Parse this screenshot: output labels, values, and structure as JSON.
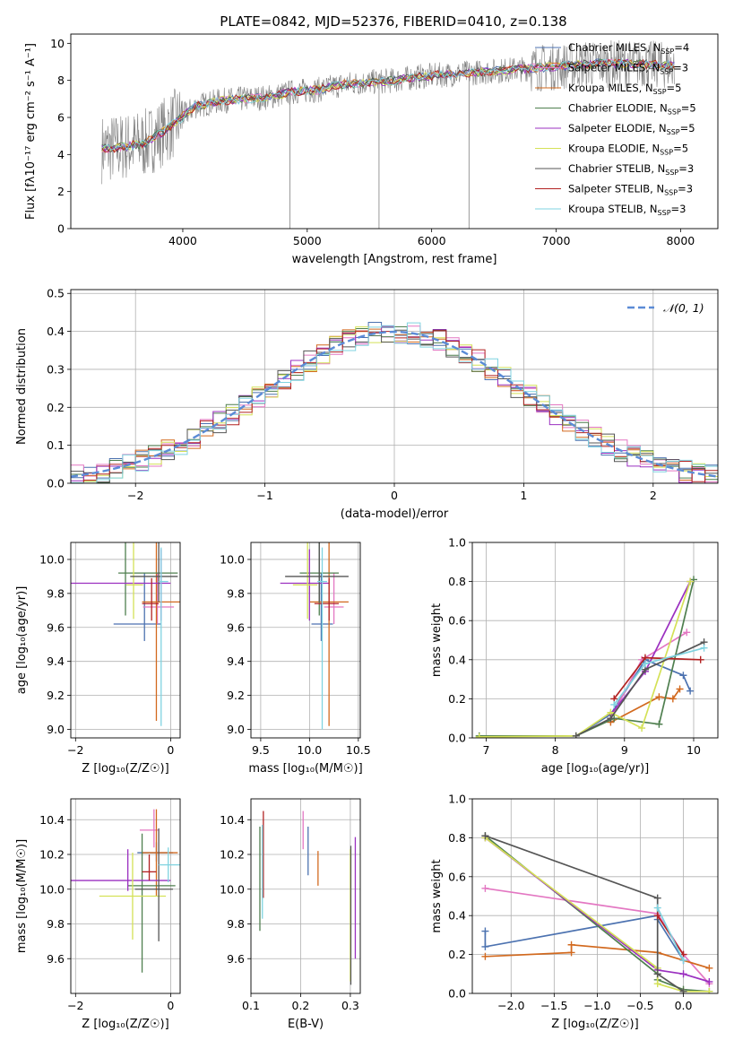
{
  "title": "PLATE=0842, MJD=52376, FIBERID=0410, z=0.138",
  "colors": {
    "grid": "#b0b0b0",
    "series": [
      "#4c72b0",
      "#e377c2",
      "#d2691e",
      "#4f7f4f",
      "#9b30c0",
      "#d4e157",
      "#555555",
      "#b22222",
      "#7fd3e0"
    ],
    "gaussian": "#5b8bd6"
  },
  "chart_data": [
    {
      "id": "spectrum",
      "type": "line",
      "xlabel": "wavelength [Angstrom, rest frame]",
      "ylabel": "Flux [fλ10⁻¹⁷ erg cm⁻² s⁻¹ A⁻¹]",
      "xlim": [
        3100,
        8300
      ],
      "ylim": [
        0,
        10.5
      ],
      "xticks": [
        "4000",
        "5000",
        "6000",
        "7000",
        "8000"
      ],
      "yticks": [
        "0",
        "2",
        "4",
        "6",
        "8",
        "10"
      ],
      "legend_position": "top-right",
      "legend": [
        "Chabrier MILES, N_SSP=4",
        "Salpeter MILES, N_SSP=3",
        "Kroupa MILES, N_SSP=5",
        "Chabrier ELODIE, N_SSP=5",
        "Salpeter ELODIE, N_SSP=5",
        "Kroupa ELODIE, N_SSP=5",
        "Chabrier STELIB, N_SSP=3",
        "Salpeter STELIB, N_SSP=3",
        "Kroupa STELIB, N_SSP=3"
      ],
      "data_x": [
        3350,
        3500,
        3700,
        3900,
        4100,
        4300,
        4500,
        4700,
        4900,
        5100,
        5300,
        5500,
        5700,
        5900,
        6100,
        6300,
        6500,
        6700,
        6900,
        7100,
        7300,
        7500,
        7700,
        7900
      ],
      "data_y": [
        4.3,
        4.4,
        4.6,
        5.5,
        6.6,
        6.9,
        7.0,
        7.1,
        7.4,
        7.5,
        7.8,
        7.9,
        8.0,
        8.2,
        8.3,
        8.4,
        8.5,
        8.6,
        8.7,
        8.8,
        8.9,
        8.9,
        8.9,
        8.8
      ],
      "grid": false
    },
    {
      "id": "residuals",
      "type": "histogram",
      "xlabel": "(data-model)/error",
      "ylabel": "Normed distribution",
      "xlim": [
        -2.5,
        2.5
      ],
      "ylim": [
        0,
        0.51
      ],
      "xticks": [
        "−2",
        "−1",
        "0",
        "1",
        "2"
      ],
      "yticks": [
        "0.0",
        "0.1",
        "0.2",
        "0.3",
        "0.4",
        "0.5"
      ],
      "legend": [
        "𝒩(0, 1)"
      ],
      "legend_position": "top-right",
      "bin_width": 0.1,
      "grid": true
    },
    {
      "id": "age-vs-Z",
      "type": "errorbar",
      "xlabel": "Z [log₁₀(Z/Z☉)]",
      "ylabel": "age  [log₁₀(age/yr)]",
      "xlim": [
        -2.1,
        0.2
      ],
      "ylim": [
        8.95,
        10.1
      ],
      "xticks": [
        "−2",
        "0"
      ],
      "yticks": [
        "9.0",
        "9.2",
        "9.4",
        "9.6",
        "9.8",
        "10.0"
      ],
      "points": [
        {
          "x": -0.55,
          "y": 9.62,
          "xl": 0.65,
          "xr": 0.35,
          "yl": 0.1,
          "yr": 0.3
        },
        {
          "x": -0.28,
          "y": 9.72,
          "xl": 0.3,
          "xr": 0.35,
          "yl": 0.1,
          "yr": 0.2
        },
        {
          "x": -0.3,
          "y": 9.75,
          "xl": 0.3,
          "xr": 0.5,
          "yl": 0.7,
          "yr": 0.35
        },
        {
          "x": -0.95,
          "y": 9.92,
          "xl": 0.15,
          "xr": 1.1,
          "yl": 0.25,
          "yr": 0.18
        },
        {
          "x": -0.2,
          "y": 9.86,
          "xl": 1.9,
          "xr": 0.2,
          "yl": 0.22,
          "yr": 0.2
        },
        {
          "x": -0.78,
          "y": 9.85,
          "xl": 0.15,
          "xr": 0.2,
          "yl": 0.2,
          "yr": 0.25
        },
        {
          "x": -0.25,
          "y": 9.9,
          "xl": 0.6,
          "xr": 0.4,
          "yl": 0.15,
          "yr": 0.2
        },
        {
          "x": -0.4,
          "y": 9.74,
          "xl": 0.2,
          "xr": 0.15,
          "yl": 0.1,
          "yr": 0.15
        },
        {
          "x": -0.2,
          "y": 9.87,
          "xl": 0.05,
          "xr": 0.15,
          "yl": 0.85,
          "yr": 0.2
        }
      ]
    },
    {
      "id": "age-vs-mass",
      "type": "errorbar",
      "xlabel": "mass [log₁₀(M/M☉)]",
      "ylabel": "",
      "xlim": [
        9.4,
        10.52
      ],
      "ylim": [
        8.95,
        10.1
      ],
      "xticks": [
        "9.5",
        "10.0",
        "10.5"
      ],
      "yticks": [
        "9.0",
        "9.2",
        "9.4",
        "9.6",
        "9.8",
        "10.0"
      ],
      "points": [
        {
          "x": 10.12,
          "y": 9.62,
          "xl": 0.1,
          "xr": 0.12,
          "yl": 0.1,
          "yr": 0.3
        },
        {
          "x": 10.25,
          "y": 9.72,
          "xl": 0.1,
          "xr": 0.1,
          "yl": 0.1,
          "yr": 0.2
        },
        {
          "x": 10.2,
          "y": 9.75,
          "xl": 0.2,
          "xr": 0.2,
          "yl": 0.73,
          "yr": 0.35
        },
        {
          "x": 10.1,
          "y": 9.92,
          "xl": 0.2,
          "xr": 0.2,
          "yl": 0.25,
          "yr": 0.18
        },
        {
          "x": 10.0,
          "y": 9.86,
          "xl": 0.3,
          "xr": 0.2,
          "yl": 0.22,
          "yr": 0.2
        },
        {
          "x": 9.98,
          "y": 9.85,
          "xl": 0.15,
          "xr": 0.1,
          "yl": 0.2,
          "yr": 0.25
        },
        {
          "x": 10.1,
          "y": 9.9,
          "xl": 0.35,
          "xr": 0.3,
          "yl": 0.15,
          "yr": 0.2
        },
        {
          "x": 10.2,
          "y": 9.74,
          "xl": 0.15,
          "xr": 0.1,
          "yl": 0.1,
          "yr": 0.15
        },
        {
          "x": 10.13,
          "y": 9.87,
          "xl": 0.05,
          "xr": 0.05,
          "yl": 0.87,
          "yr": 0.2
        }
      ]
    },
    {
      "id": "weight-vs-age",
      "type": "line",
      "xlabel": "age  [log₁₀(age/yr)]",
      "ylabel": "mass weight",
      "xlim": [
        6.8,
        10.35
      ],
      "ylim": [
        0,
        1.0
      ],
      "xticks": [
        "7",
        "8",
        "9",
        "10"
      ],
      "yticks": [
        "0.0",
        "0.2",
        "0.4",
        "0.6",
        "0.8",
        "1.0"
      ],
      "series": [
        {
          "x": [
            8.3,
            8.8,
            9.3,
            9.85,
            9.95
          ],
          "y": [
            0.01,
            0.12,
            0.4,
            0.32,
            0.24
          ]
        },
        {
          "x": [
            8.8,
            9.25,
            9.9
          ],
          "y": [
            0.1,
            0.4,
            0.54
          ]
        },
        {
          "x": [
            8.8,
            9.5,
            9.7,
            9.8
          ],
          "y": [
            0.08,
            0.21,
            0.2,
            0.25
          ]
        },
        {
          "x": [
            6.9,
            8.3,
            8.85,
            9.5,
            10.0
          ],
          "y": [
            0.01,
            0.01,
            0.1,
            0.07,
            0.81
          ]
        },
        {
          "x": [
            8.8,
            9.3,
            9.95
          ],
          "y": [
            0.12,
            0.34,
            0.8
          ]
        },
        {
          "x": [
            6.9,
            8.3,
            8.8,
            9.25,
            9.95
          ],
          "y": [
            0.005,
            0.01,
            0.13,
            0.05,
            0.8
          ]
        },
        {
          "x": [
            8.3,
            8.8,
            9.3,
            10.15
          ],
          "y": [
            0.01,
            0.1,
            0.35,
            0.49
          ]
        },
        {
          "x": [
            8.85,
            9.3,
            10.1
          ],
          "y": [
            0.2,
            0.41,
            0.4
          ]
        },
        {
          "x": [
            8.85,
            9.3,
            10.15
          ],
          "y": [
            0.17,
            0.38,
            0.46
          ]
        }
      ]
    },
    {
      "id": "mass-vs-Z",
      "type": "errorbar",
      "xlabel": "Z [log₁₀(Z/Z☉)]",
      "ylabel": "mass [log₁₀(M/M☉)]",
      "xlim": [
        -2.1,
        0.2
      ],
      "ylim": [
        9.4,
        10.52
      ],
      "xticks": [
        "−2",
        "0"
      ],
      "yticks": [
        "9.6",
        "9.8",
        "10.0",
        "10.2",
        "10.4"
      ],
      "points": [
        {
          "x": -0.3,
          "y": 10.21,
          "xl": 0.4,
          "xr": 0.35,
          "yl": 0.05,
          "yr": 0.06
        },
        {
          "x": -0.35,
          "y": 10.34,
          "xl": 0.3,
          "xr": 0.1,
          "yl": 0.1,
          "yr": 0.12
        },
        {
          "x": -0.3,
          "y": 10.21,
          "xl": 0.3,
          "xr": 0.45,
          "yl": 0.25,
          "yr": 0.25
        },
        {
          "x": -0.6,
          "y": 10.02,
          "xl": 0.3,
          "xr": 0.7,
          "yl": 0.5,
          "yr": 0.3
        },
        {
          "x": -0.9,
          "y": 10.05,
          "xl": 1.2,
          "xr": 0.9,
          "yl": 0.06,
          "yr": 0.18
        },
        {
          "x": -0.8,
          "y": 9.96,
          "xl": 0.7,
          "xr": 0.7,
          "yl": 0.25,
          "yr": 0.25
        },
        {
          "x": -0.25,
          "y": 10.0,
          "xl": 0.5,
          "xr": 0.3,
          "yl": 0.3,
          "yr": 0.35
        },
        {
          "x": -0.45,
          "y": 10.1,
          "xl": 0.15,
          "xr": 0.15,
          "yl": 0.05,
          "yr": 0.1
        },
        {
          "x": -0.05,
          "y": 10.14,
          "xl": 0.2,
          "xr": 0.25,
          "yl": 0.1,
          "yr": 0.1
        }
      ]
    },
    {
      "id": "mass-vs-ebv",
      "type": "errorbar",
      "xlabel": "E(B-V)",
      "ylabel": "",
      "xlim": [
        0.1,
        0.32
      ],
      "ylim": [
        9.4,
        10.52
      ],
      "xticks": [
        "0.1",
        "0.2",
        "0.3"
      ],
      "yticks": [
        "9.6",
        "9.8",
        "10.0",
        "10.2",
        "10.4"
      ],
      "points": [
        {
          "x": 0.215,
          "y": 10.22,
          "xl": 0,
          "xr": 0,
          "yl": 0.14,
          "yr": 0.14
        },
        {
          "x": 0.205,
          "y": 10.34,
          "xl": 0,
          "xr": 0,
          "yl": 0.11,
          "yr": 0.11
        },
        {
          "x": 0.235,
          "y": 10.12,
          "xl": 0,
          "xr": 0,
          "yl": 0.1,
          "yr": 0.1
        },
        {
          "x": 0.118,
          "y": 10.06,
          "xl": 0,
          "xr": 0,
          "yl": 0.3,
          "yr": 0.3
        },
        {
          "x": 0.31,
          "y": 9.95,
          "xl": 0,
          "xr": 0,
          "yl": 0.35,
          "yr": 0.35
        },
        {
          "x": 0.3,
          "y": 9.85,
          "xl": 0,
          "xr": 0,
          "yl": 0.38,
          "yr": 0.38
        },
        {
          "x": 0.301,
          "y": 9.85,
          "xl": 0,
          "xr": 0,
          "yl": 0.4,
          "yr": 0.4
        },
        {
          "x": 0.125,
          "y": 10.2,
          "xl": 0,
          "xr": 0,
          "yl": 0.25,
          "yr": 0.25
        },
        {
          "x": 0.123,
          "y": 10.1,
          "xl": 0,
          "xr": 0,
          "yl": 0.27,
          "yr": 0.27
        }
      ]
    },
    {
      "id": "weight-vs-Z",
      "type": "line",
      "xlabel": "Z [log₁₀(Z/Z☉)]",
      "ylabel": "mass weight",
      "xlim": [
        -2.45,
        0.4
      ],
      "ylim": [
        0,
        1.0
      ],
      "xticks": [
        "−2.0",
        "−1.5",
        "−1.0",
        "−0.5",
        "0.0"
      ],
      "yticks": [
        "0.0",
        "0.2",
        "0.4",
        "0.6",
        "0.8",
        "1.0"
      ],
      "series": [
        {
          "x": [
            -2.3,
            -2.3,
            -0.3,
            -0.3,
            0.0
          ],
          "y": [
            0.32,
            0.24,
            0.4,
            0.38,
            0.17
          ]
        },
        {
          "x": [
            -2.3,
            -0.3,
            0.0,
            0.3
          ],
          "y": [
            0.54,
            0.41,
            0.2,
            0.05
          ]
        },
        {
          "x": [
            -2.3,
            -1.3,
            -1.3,
            -0.3,
            0.3
          ],
          "y": [
            0.19,
            0.21,
            0.25,
            0.21,
            0.13
          ]
        },
        {
          "x": [
            -2.3,
            -0.3,
            -0.3,
            0.0,
            0.3
          ],
          "y": [
            0.81,
            0.1,
            0.07,
            0.02,
            0.01
          ]
        },
        {
          "x": [
            -2.3,
            -0.3,
            0.0,
            0.3
          ],
          "y": [
            0.8,
            0.12,
            0.1,
            0.06
          ]
        },
        {
          "x": [
            -2.3,
            -0.3,
            -0.3,
            0.0,
            0.3
          ],
          "y": [
            0.8,
            0.13,
            0.05,
            0.01,
            0.01
          ]
        },
        {
          "x": [
            -2.3,
            -0.3,
            -0.3,
            0.0
          ],
          "y": [
            0.81,
            0.49,
            0.1,
            0.01
          ]
        },
        {
          "x": [
            -0.3,
            0.0
          ],
          "y": [
            0.4,
            0.2
          ]
        },
        {
          "x": [
            -0.3,
            0.0
          ],
          "y": [
            0.44,
            0.17
          ]
        }
      ]
    }
  ]
}
